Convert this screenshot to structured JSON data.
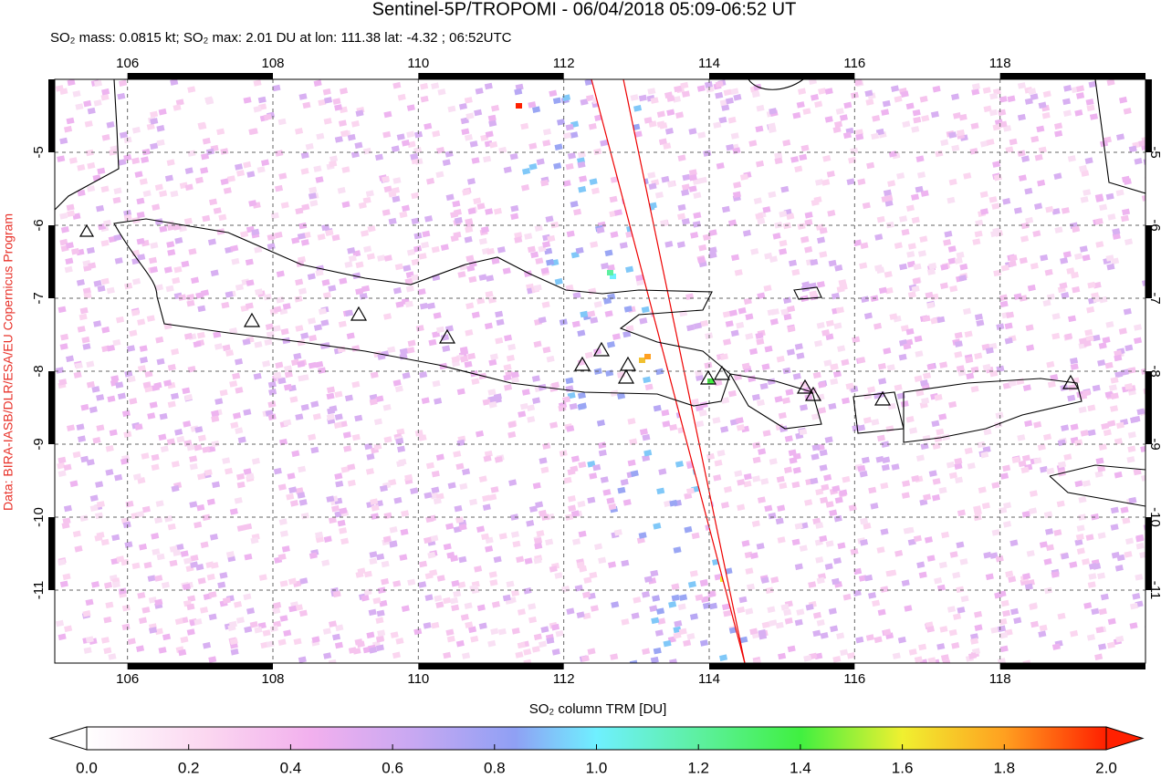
{
  "chart_data": {
    "type": "map",
    "title": "Sentinel-5P/TROPOMI - 06/04/2018 05:09-06:52 UT",
    "subtitle": "SO₂ mass: 0.0815 kt; SO₂ max: 2.01 DU at lon: 111.38 lat: -4.32 ; 06:52UTC",
    "credit": "Data: BIRA-IASB/DLR/ESA/EU Copernicus Program",
    "xlim": [
      105,
      120
    ],
    "ylim": [
      -12,
      -4
    ],
    "xticks": [
      106,
      108,
      110,
      112,
      114,
      116,
      118
    ],
    "yticks": [
      -5,
      -6,
      -7,
      -8,
      -9,
      -10,
      -11
    ],
    "grid": true,
    "colorbar": {
      "label": "SO₂ column TRM [DU]",
      "lim": [
        0,
        2
      ],
      "ticks": [
        {
          "value": 0,
          "label": "0.0"
        },
        {
          "value": 0.2,
          "label": "0.2"
        },
        {
          "value": 0.4,
          "label": "0.4"
        },
        {
          "value": 0.6,
          "label": "0.6"
        },
        {
          "value": 0.8,
          "label": "0.8"
        },
        {
          "value": 1,
          "label": "1.0"
        },
        {
          "value": 1.2,
          "label": "1.2"
        },
        {
          "value": 1.4,
          "label": "1.4"
        },
        {
          "value": 1.6,
          "label": "1.6"
        },
        {
          "value": 1.8,
          "label": "1.8"
        },
        {
          "value": 2,
          "label": "2.0"
        }
      ]
    }
  }
}
